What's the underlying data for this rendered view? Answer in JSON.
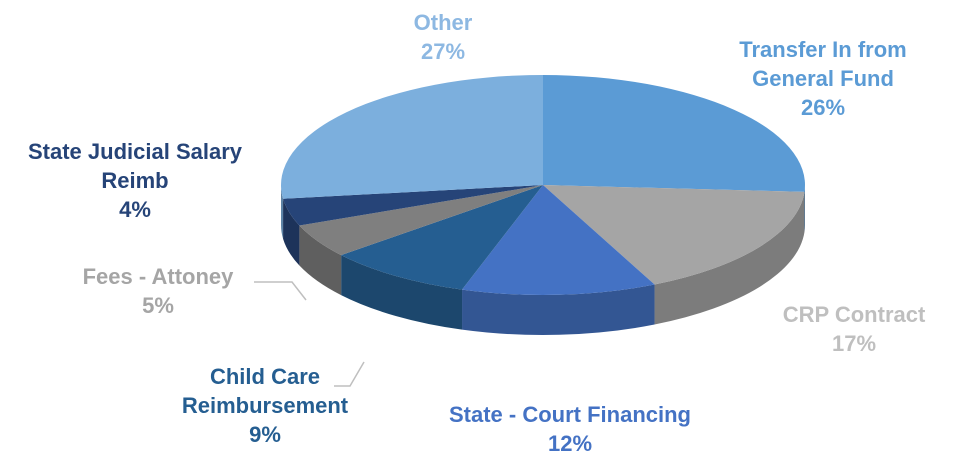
{
  "chart_data": {
    "type": "pie3d",
    "categories": [
      "Transfer In from General Fund",
      "CRP Contract",
      "State - Court Financing",
      "Child Care Reimbursement",
      "Fees - Attoney",
      "State Judicial Salary Reimb",
      "Other"
    ],
    "values": [
      26,
      17,
      12,
      9,
      5,
      4,
      27
    ],
    "value_labels": [
      "26%",
      "17%",
      "12%",
      "9%",
      "5%",
      "4%",
      "27%"
    ],
    "colors": [
      "#5b9bd5",
      "#a5a5a5",
      "#4472c4",
      "#255e91",
      "#7f7f7f",
      "#264478",
      "#7cafdd"
    ],
    "label_colors": [
      "#5b9bd5",
      "#bfbfbf",
      "#4472c4",
      "#255e91",
      "#a5a5a5",
      "#264478",
      "#8db8e2"
    ]
  }
}
